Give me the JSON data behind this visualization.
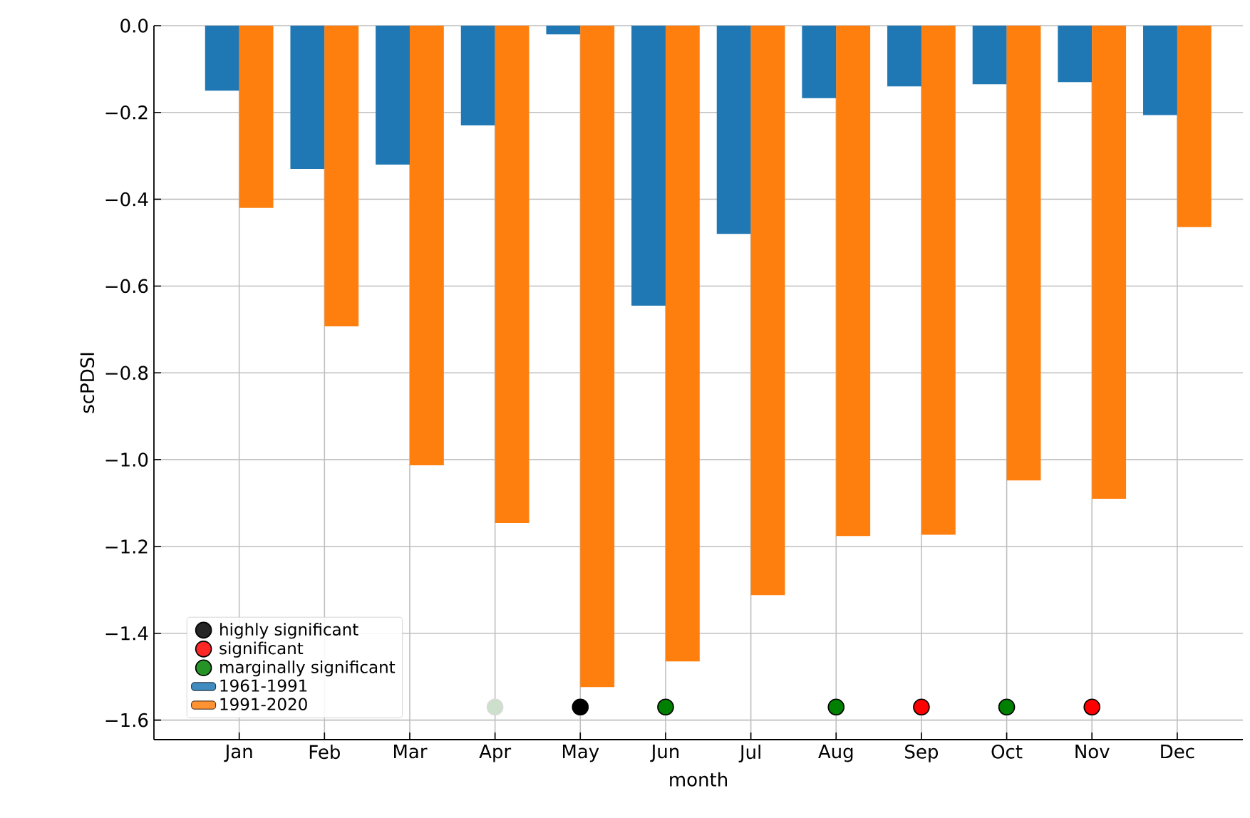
{
  "chart_data": {
    "type": "bar",
    "xlabel": "month",
    "ylabel": "scPDSI",
    "categories": [
      "Jan",
      "Feb",
      "Mar",
      "Apr",
      "May",
      "Jun",
      "Jul",
      "Aug",
      "Sep",
      "Oct",
      "Nov",
      "Dec"
    ],
    "series": [
      {
        "name": "highly significant",
        "type": "scatter",
        "color": "#000000",
        "x": [
          "May"
        ],
        "values": [
          -1.57
        ]
      },
      {
        "name": "significant",
        "type": "scatter",
        "color": "#ff0000",
        "x": [
          "Sep",
          "Nov"
        ],
        "values": [
          -1.57,
          -1.57
        ]
      },
      {
        "name": "marginally significant",
        "type": "scatter",
        "color": "#008000",
        "x": [
          "Jun",
          "Aug",
          "Oct"
        ],
        "values": [
          -1.57,
          -1.57,
          -1.57
        ]
      },
      {
        "type": "scatter",
        "color": "#cce0cc",
        "x": [
          "Apr"
        ],
        "values": [
          -1.57
        ]
      },
      {
        "name": "1961-1991",
        "color": "#1f77b4",
        "values": [
          -0.15,
          -0.33,
          -0.32,
          -0.23,
          -0.02,
          -0.645,
          -0.48,
          -0.167,
          -0.14,
          -0.135,
          -0.13,
          -0.206
        ]
      },
      {
        "name": "1991-2020",
        "color": "#ff7f0e",
        "values": [
          -0.42,
          -0.693,
          -1.013,
          -1.146,
          -1.524,
          -1.465,
          -1.312,
          -1.176,
          -1.173,
          -1.048,
          -1.09,
          -0.464
        ]
      }
    ],
    "ylim": [
      -1.645,
      0
    ],
    "yticks": [
      {
        "value": -1.6,
        "label": "−1.6"
      },
      {
        "value": -1.4,
        "label": "−1.4"
      },
      {
        "value": -1.2,
        "label": "−1.2"
      },
      {
        "value": -1.0,
        "label": "−1.0"
      },
      {
        "value": -0.8,
        "label": "−0.8"
      },
      {
        "value": -0.6,
        "label": "−0.6"
      },
      {
        "value": -0.4,
        "label": "−0.4"
      },
      {
        "value": -0.2,
        "label": "−0.2"
      },
      {
        "value": 0,
        "label": "0.0"
      }
    ],
    "grid": true,
    "legend": "bottom left"
  }
}
